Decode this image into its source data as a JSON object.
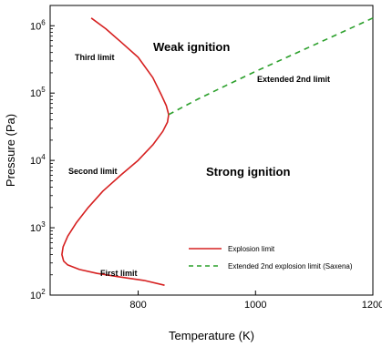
{
  "chart_data": {
    "type": "line",
    "xlabel": "Temperature (K)",
    "ylabel": "Pressure (Pa)",
    "xlim": [
      650,
      1200
    ],
    "ylim": [
      100,
      2000000
    ],
    "yscale": "log",
    "grid": false,
    "legend_position": "bottom-right",
    "xticks": [
      {
        "value": 800,
        "label": "800"
      },
      {
        "value": 1000,
        "label": "1000"
      },
      {
        "value": 1200,
        "label": "1200"
      }
    ],
    "yticks": [
      {
        "value": 100,
        "base": "10",
        "exp": "2"
      },
      {
        "value": 1000,
        "base": "10",
        "exp": "3"
      },
      {
        "value": 10000,
        "base": "10",
        "exp": "4"
      },
      {
        "value": 100000,
        "base": "10",
        "exp": "5"
      },
      {
        "value": 1000000,
        "base": "10",
        "exp": "6"
      }
    ],
    "series": [
      {
        "name": "Explosion limit",
        "color": "#d62020",
        "style": "solid",
        "x": [
          720,
          745,
          770,
          800,
          825,
          840,
          848,
          852,
          850,
          842,
          825,
          800,
          770,
          740,
          715,
          695,
          680,
          672,
          670,
          673,
          680,
          700,
          730,
          770,
          810,
          845
        ],
        "y": [
          1300000,
          900000,
          580000,
          340000,
          170000,
          92000,
          65000,
          48000,
          37000,
          27000,
          17000,
          10000,
          6000,
          3500,
          2000,
          1200,
          750,
          520,
          400,
          320,
          280,
          240,
          210,
          185,
          165,
          140
        ]
      },
      {
        "name": "Extended 2nd explosion limit (Saxena)",
        "color": "#2ca02c",
        "style": "dashed",
        "x": [
          852,
          900,
          950,
          1000,
          1050,
          1100,
          1150,
          1200
        ],
        "y": [
          48000,
          80000,
          130000,
          210000,
          330000,
          520000,
          820000,
          1300000
        ]
      }
    ],
    "annotations": [
      {
        "text": "Weak ignition",
        "style": "large"
      },
      {
        "text": "Strong ignition",
        "style": "large"
      },
      {
        "text": "Third limit",
        "style": "small"
      },
      {
        "text": "Second limit",
        "style": "small"
      },
      {
        "text": "First limit",
        "style": "small"
      },
      {
        "text": "Extended 2nd limit",
        "style": "small"
      }
    ]
  }
}
